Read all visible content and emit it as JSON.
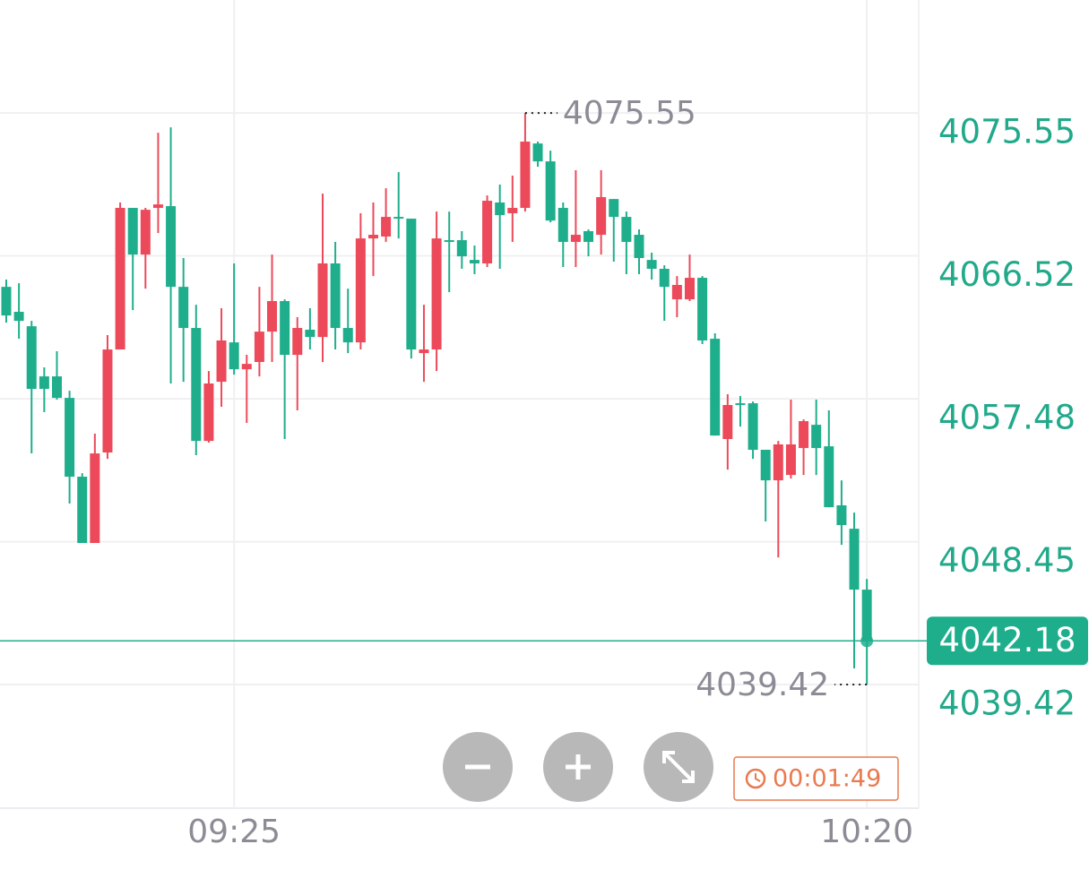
{
  "chart_data": {
    "type": "candlestick",
    "categories": [
      null,
      null,
      null,
      null,
      null,
      null,
      null,
      null,
      null,
      null,
      null,
      null,
      null,
      null,
      null,
      null,
      null,
      null,
      "09:25",
      null,
      null,
      null,
      null,
      null,
      null,
      null,
      null,
      null,
      null,
      null,
      null,
      null,
      null,
      null,
      null,
      null,
      null,
      null,
      null,
      null,
      null,
      null,
      null,
      null,
      null,
      null,
      null,
      null,
      null,
      null,
      null,
      null,
      null,
      null,
      null,
      null,
      null,
      null,
      null,
      null,
      null,
      null,
      null,
      null,
      null,
      null,
      null,
      null,
      "10:20"
    ],
    "open": [
      4064.56,
      4062.98,
      4062.07,
      4058.9,
      4058.9,
      4057.54,
      4052.56,
      4048.37,
      4054.09,
      4060.6,
      4069.55,
      4066.6,
      4069.55,
      4069.66,
      4064.56,
      4061.96,
      4054.82,
      4058.56,
      4061.05,
      4059.35,
      4059.81,
      4061.73,
      4063.66,
      4060.26,
      4061.85,
      4061.39,
      4066.04,
      4061.96,
      4061.05,
      4067.62,
      4067.74,
      4068.98,
      4068.87,
      4060.37,
      4060.6,
      4067.51,
      4067.51,
      4066.26,
      4066.04,
      4069.89,
      4069.21,
      4069.55,
      4073.62,
      4072.49,
      4069.55,
      4067.4,
      4068.08,
      4067.85,
      4070.11,
      4068.98,
      4067.85,
      4066.26,
      4065.7,
      4063.77,
      4063.77,
      4065.13,
      4061.28,
      4054.94,
      4057.2,
      4057.2,
      4054.26,
      4052.33,
      4052.67,
      4054.37,
      4055.84,
      4054.48,
      4050.75,
      4049.27,
      4045.42
    ],
    "high": [
      4065.02,
      4064.79,
      4062.41,
      4059.47,
      4060.49,
      4057.99,
      4052.78,
      4055.28,
      4061.51,
      4069.89,
      4069.55,
      4069.55,
      4074.3,
      4074.64,
      4066.38,
      4063.43,
      4059.24,
      4063.21,
      4066.04,
      4060.26,
      4064.56,
      4066.6,
      4063.77,
      4062.64,
      4063.21,
      4070.45,
      4067.4,
      4064.45,
      4069.21,
      4069.89,
      4070.79,
      4071.81,
      4068.87,
      4063.43,
      4069.32,
      4069.32,
      4068.08,
      4067.17,
      4070.34,
      4071.02,
      4071.59,
      4075.55,
      4073.74,
      4073.17,
      4069.89,
      4071.93,
      4068.19,
      4071.93,
      4070.11,
      4069.32,
      4068.19,
      4066.72,
      4065.92,
      4065.24,
      4066.6,
      4065.24,
      4061.62,
      4057.77,
      4057.66,
      4057.31,
      4054.26,
      4054.82,
      4057.43,
      4056.18,
      4057.43,
      4056.75,
      4052.33,
      4050.29,
      4046.1
    ],
    "low": [
      4062.3,
      4061.28,
      4054.03,
      4056.64,
      4057.43,
      4050.86,
      4048.37,
      4048.37,
      4053.69,
      4060.6,
      4063.09,
      4064.45,
      4067.96,
      4058.45,
      4058.56,
      4053.92,
      4054.71,
      4056.98,
      4059.01,
      4055.96,
      4058.9,
      4059.81,
      4054.94,
      4056.75,
      4060.6,
      4059.81,
      4060.6,
      4060.37,
      4060.6,
      4065.24,
      4067.4,
      4067.62,
      4060.03,
      4058.56,
      4059.24,
      4064.22,
      4065.7,
      4065.36,
      4065.81,
      4065.7,
      4067.4,
      4069.32,
      4072.15,
      4068.64,
      4065.81,
      4065.81,
      4066.49,
      4066.6,
      4066.15,
      4065.36,
      4065.36,
      4065.02,
      4062.41,
      4062.64,
      4063.66,
      4060.94,
      4055.16,
      4053.01,
      4055.73,
      4053.69,
      4049.73,
      4047.46,
      4052.44,
      4052.67,
      4052.67,
      4050.63,
      4048.25,
      4040.44,
      4039.42
    ],
    "close": [
      4062.75,
      4062.41,
      4058.11,
      4058.11,
      4057.54,
      4052.56,
      4048.37,
      4054.03,
      4060.6,
      4069.55,
      4066.6,
      4069.43,
      4069.77,
      4064.56,
      4061.96,
      4054.82,
      4058.45,
      4061.17,
      4059.35,
      4059.69,
      4061.73,
      4063.66,
      4060.26,
      4061.96,
      4061.39,
      4066.04,
      4061.96,
      4061.05,
      4067.62,
      4067.85,
      4068.98,
      4068.87,
      4060.6,
      4060.6,
      4067.62,
      4067.4,
      4066.49,
      4066.04,
      4070.0,
      4069.09,
      4069.55,
      4073.74,
      4072.49,
      4068.75,
      4067.4,
      4067.85,
      4067.4,
      4070.23,
      4068.98,
      4067.4,
      4066.38,
      4065.7,
      4064.56,
      4064.68,
      4065.13,
      4061.17,
      4055.16,
      4057.09,
      4057.09,
      4054.26,
      4052.33,
      4054.6,
      4054.6,
      4056.07,
      4054.37,
      4050.63,
      4049.5,
      4045.42,
      4042.18
    ],
    "up_color": "#ec4a5a",
    "down_color": "#1fae8c",
    "ylim": [
      4031.72,
      4082.69
    ],
    "yticks": [
      4075.55,
      4066.52,
      4057.48,
      4048.45,
      4039.42
    ],
    "grid": true,
    "high_marker": 4075.55,
    "low_marker": 4039.42,
    "last_price": 4042.18,
    "timer": "00:01:49"
  }
}
